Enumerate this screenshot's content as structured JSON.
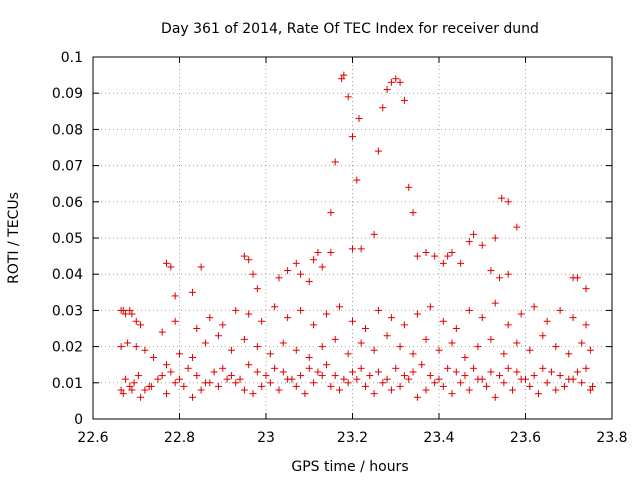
{
  "chart_data": {
    "type": "scatter",
    "title": "Day 361 of 2014, Rate Of TEC Index for receiver dund",
    "xlabel": "GPS time / hours",
    "ylabel": "ROTI / TECUs",
    "xlim": [
      22.6,
      23.8
    ],
    "ylim": [
      0,
      0.1
    ],
    "xticks": [
      "22.6",
      "22.8",
      "23",
      "23.2",
      "23.4",
      "23.6",
      "23.8"
    ],
    "yticks": [
      "0",
      "0.01",
      "0.02",
      "0.03",
      "0.04",
      "0.05",
      "0.06",
      "0.07",
      "0.08",
      "0.09",
      "0.1"
    ],
    "grid": true,
    "marker": "+",
    "color": "#e00000",
    "series": [
      {
        "name": "ROTI",
        "x": [
          22.665,
          22.675,
          22.685,
          22.695,
          22.705,
          22.72,
          22.735,
          22.75,
          22.77,
          22.79,
          22.81,
          22.83,
          22.85,
          22.87,
          22.89,
          22.91,
          22.93,
          22.95,
          22.97,
          22.99,
          23.01,
          23.03,
          23.05,
          23.07,
          23.09,
          23.11,
          23.13,
          23.15,
          23.17,
          23.19,
          23.21,
          23.23,
          23.25,
          23.27,
          23.29,
          23.31,
          23.33,
          23.35,
          23.37,
          23.39,
          23.41,
          23.43,
          23.45,
          23.47,
          23.49,
          23.51,
          23.53,
          23.55,
          23.57,
          23.59,
          23.61,
          23.63,
          23.65,
          23.67,
          23.69,
          23.71,
          23.73,
          23.75,
          23.755,
          22.67,
          22.69,
          22.71,
          22.73,
          22.76,
          22.78,
          22.8,
          22.82,
          22.84,
          22.86,
          22.88,
          22.9,
          22.92,
          22.94,
          22.96,
          22.98,
          23.0,
          23.02,
          23.04,
          23.06,
          23.08,
          23.1,
          23.12,
          23.14,
          23.16,
          23.18,
          23.2,
          23.22,
          23.24,
          23.26,
          23.28,
          23.3,
          23.32,
          23.34,
          23.36,
          23.38,
          23.4,
          23.42,
          23.44,
          23.46,
          23.48,
          23.5,
          23.52,
          23.54,
          23.56,
          23.58,
          23.6,
          23.62,
          23.64,
          23.66,
          23.68,
          23.7,
          23.72,
          23.74,
          22.665,
          22.68,
          22.7,
          22.72,
          22.74,
          22.77,
          22.8,
          22.83,
          22.86,
          22.89,
          22.92,
          22.95,
          22.98,
          23.01,
          23.04,
          23.07,
          23.1,
          23.13,
          23.16,
          23.19,
          23.22,
          23.25,
          23.28,
          23.31,
          23.34,
          23.37,
          23.4,
          23.43,
          23.46,
          23.49,
          23.52,
          23.55,
          23.58,
          23.61,
          23.64,
          23.67,
          23.7,
          23.73,
          23.75,
          22.67,
          22.69,
          22.71,
          22.76,
          22.79,
          22.84,
          22.87,
          22.9,
          22.93,
          22.96,
          22.99,
          23.02,
          23.05,
          23.08,
          23.11,
          23.14,
          23.17,
          23.2,
          23.23,
          23.26,
          23.29,
          23.32,
          23.35,
          23.38,
          23.41,
          23.44,
          23.47,
          23.5,
          23.53,
          23.56,
          23.59,
          23.62,
          23.65,
          23.68,
          23.71,
          23.74,
          22.665,
          22.675,
          22.685,
          22.7,
          22.77,
          22.78,
          22.79,
          22.83,
          22.85,
          22.95,
          22.96,
          22.97,
          22.98,
          23.03,
          23.05,
          23.07,
          23.08,
          23.1,
          23.11,
          23.12,
          23.13,
          23.15,
          23.42,
          23.43,
          23.45,
          23.47,
          23.5,
          23.52,
          23.54,
          23.56,
          23.71,
          23.72,
          23.74,
          23.15,
          23.16,
          23.175,
          23.18,
          23.19,
          23.2,
          23.21,
          23.215,
          23.25,
          23.26,
          23.27,
          23.28,
          23.29,
          23.3,
          23.31,
          23.32,
          23.33,
          23.34,
          23.35,
          23.53,
          23.545,
          23.56,
          23.2,
          23.22,
          23.37,
          23.39,
          23.41,
          23.48,
          23.58
        ],
        "y": [
          0.008,
          0.011,
          0.009,
          0.01,
          0.012,
          0.008,
          0.009,
          0.011,
          0.007,
          0.01,
          0.009,
          0.006,
          0.008,
          0.01,
          0.009,
          0.011,
          0.01,
          0.008,
          0.007,
          0.009,
          0.01,
          0.008,
          0.011,
          0.009,
          0.007,
          0.01,
          0.012,
          0.009,
          0.008,
          0.01,
          0.011,
          0.009,
          0.007,
          0.01,
          0.008,
          0.009,
          0.011,
          0.006,
          0.008,
          0.01,
          0.009,
          0.007,
          0.01,
          0.008,
          0.011,
          0.009,
          0.006,
          0.01,
          0.008,
          0.011,
          0.009,
          0.007,
          0.01,
          0.008,
          0.009,
          0.011,
          0.01,
          0.008,
          0.009,
          0.007,
          0.008,
          0.006,
          0.009,
          0.012,
          0.013,
          0.011,
          0.014,
          0.012,
          0.01,
          0.013,
          0.014,
          0.012,
          0.011,
          0.015,
          0.013,
          0.012,
          0.014,
          0.013,
          0.011,
          0.012,
          0.014,
          0.013,
          0.015,
          0.012,
          0.011,
          0.013,
          0.014,
          0.012,
          0.013,
          0.011,
          0.014,
          0.012,
          0.013,
          0.015,
          0.012,
          0.011,
          0.014,
          0.013,
          0.012,
          0.014,
          0.011,
          0.013,
          0.012,
          0.014,
          0.013,
          0.011,
          0.012,
          0.014,
          0.013,
          0.012,
          0.011,
          0.013,
          0.014,
          0.02,
          0.021,
          0.02,
          0.019,
          0.017,
          0.015,
          0.018,
          0.017,
          0.021,
          0.023,
          0.019,
          0.022,
          0.02,
          0.018,
          0.021,
          0.019,
          0.017,
          0.02,
          0.022,
          0.018,
          0.021,
          0.019,
          0.023,
          0.02,
          0.018,
          0.022,
          0.019,
          0.021,
          0.017,
          0.02,
          0.022,
          0.018,
          0.021,
          0.019,
          0.023,
          0.02,
          0.018,
          0.021,
          0.019,
          0.03,
          0.029,
          0.026,
          0.024,
          0.027,
          0.025,
          0.028,
          0.026,
          0.03,
          0.029,
          0.027,
          0.031,
          0.028,
          0.03,
          0.026,
          0.029,
          0.031,
          0.027,
          0.025,
          0.03,
          0.028,
          0.026,
          0.029,
          0.031,
          0.027,
          0.025,
          0.03,
          0.028,
          0.032,
          0.026,
          0.029,
          0.031,
          0.027,
          0.03,
          0.028,
          0.026,
          0.03,
          0.029,
          0.03,
          0.027,
          0.043,
          0.042,
          0.034,
          0.035,
          0.042,
          0.045,
          0.044,
          0.04,
          0.036,
          0.039,
          0.041,
          0.043,
          0.04,
          0.038,
          0.044,
          0.046,
          0.042,
          0.046,
          0.045,
          0.046,
          0.043,
          0.049,
          0.048,
          0.041,
          0.039,
          0.04,
          0.039,
          0.039,
          0.036,
          0.057,
          0.071,
          0.094,
          0.095,
          0.089,
          0.078,
          0.066,
          0.083,
          0.051,
          0.074,
          0.086,
          0.091,
          0.093,
          0.094,
          0.093,
          0.088,
          0.064,
          0.057,
          0.045,
          0.05,
          0.061,
          0.06,
          0.047,
          0.047,
          0.046,
          0.045,
          0.043,
          0.051,
          0.053
        ]
      }
    ]
  }
}
